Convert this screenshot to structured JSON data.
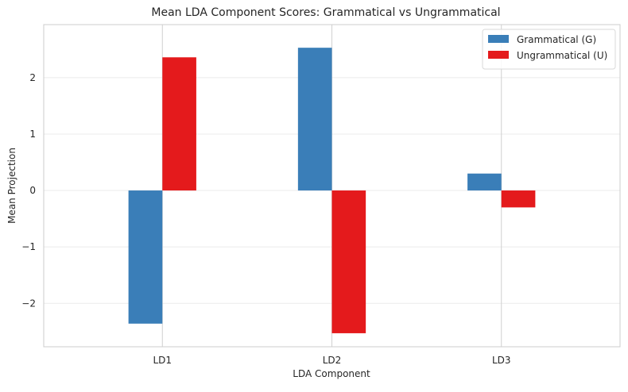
{
  "chart_data": {
    "type": "bar",
    "title": "Mean LDA Component Scores: Grammatical vs Ungrammatical",
    "xlabel": "LDA Component",
    "ylabel": "Mean Projection",
    "categories": [
      "LD1",
      "LD2",
      "LD3"
    ],
    "series": [
      {
        "name": "Grammatical (G)",
        "values": [
          -2.36,
          2.53,
          0.3
        ],
        "color": "#3a7eb8"
      },
      {
        "name": "Ungrammatical (U)",
        "values": [
          2.36,
          -2.53,
          -0.3
        ],
        "color": "#e41a1c"
      }
    ],
    "ylim": [
      -2.77,
      2.94
    ],
    "yticks": [
      -2,
      -1,
      0,
      1,
      2
    ],
    "ytick_labels": [
      "−2",
      "−1",
      "0",
      "1",
      "2"
    ],
    "grid": true,
    "legend_position": "top-right"
  }
}
